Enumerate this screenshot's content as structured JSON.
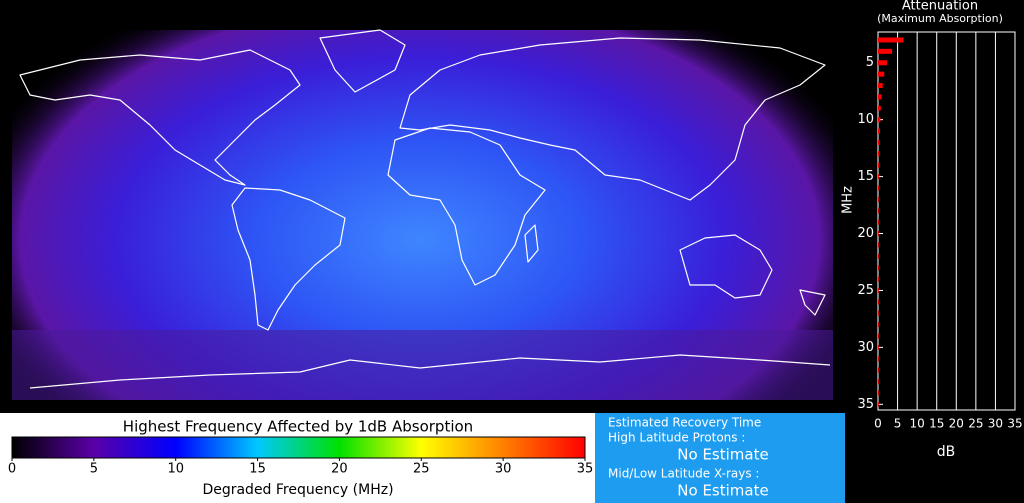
{
  "map": {
    "legend": {
      "title": "Highest Frequency Affected by 1dB Absorption",
      "label": "Degraded Frequency (MHz)"
    }
  },
  "chart_data": [
    {
      "type": "hbar",
      "title": "Attenuation",
      "subtitle": "(Maximum Absorption)",
      "y_label": "MHz",
      "x_label": "dB",
      "color": "#ff0000",
      "grid": true,
      "y_inverted": true,
      "y": [
        3,
        4,
        5,
        6,
        7,
        8,
        9,
        10,
        11,
        12,
        13,
        14,
        15,
        16,
        17,
        18,
        19,
        20,
        21,
        22,
        23,
        24,
        25,
        26,
        27,
        28,
        29,
        30,
        31,
        32,
        33,
        34,
        35
      ],
      "values": [
        6.5,
        3.6,
        2.3,
        1.6,
        1.2,
        0.9,
        0.7,
        0.6,
        0.5,
        0.4,
        0.35,
        0.3,
        0.26,
        0.23,
        0.2,
        0.18,
        0.16,
        0.15,
        0.13,
        0.12,
        0.11,
        0.1,
        0.09,
        0.09,
        0.08,
        0.07,
        0.07,
        0.06,
        0.06,
        0.06,
        0.05,
        0.05,
        0.05
      ],
      "ylim": [
        2.3,
        35.5
      ],
      "yticks": [
        5,
        10,
        15,
        20,
        25,
        30,
        35
      ],
      "xlim": [
        0,
        35
      ],
      "xticks": [
        0,
        5,
        10,
        15,
        20,
        25,
        30,
        35
      ]
    },
    {
      "type": "colorbar",
      "xlim": [
        0,
        35
      ],
      "xticks": [
        0,
        5,
        10,
        15,
        20,
        25,
        30,
        35
      ],
      "colors": [
        "#000000",
        "#5a00a8",
        "#0000ff",
        "#00c8ff",
        "#00e000",
        "#ffff00",
        "#ff8000",
        "#ff0000"
      ]
    }
  ],
  "recovery": {
    "title": "Estimated Recovery Time",
    "protons_label": "High Latitude Protons :",
    "protons_value": "No Estimate",
    "xrays_label": "Mid/Low Latitude X-rays :",
    "xrays_value": "No Estimate"
  }
}
